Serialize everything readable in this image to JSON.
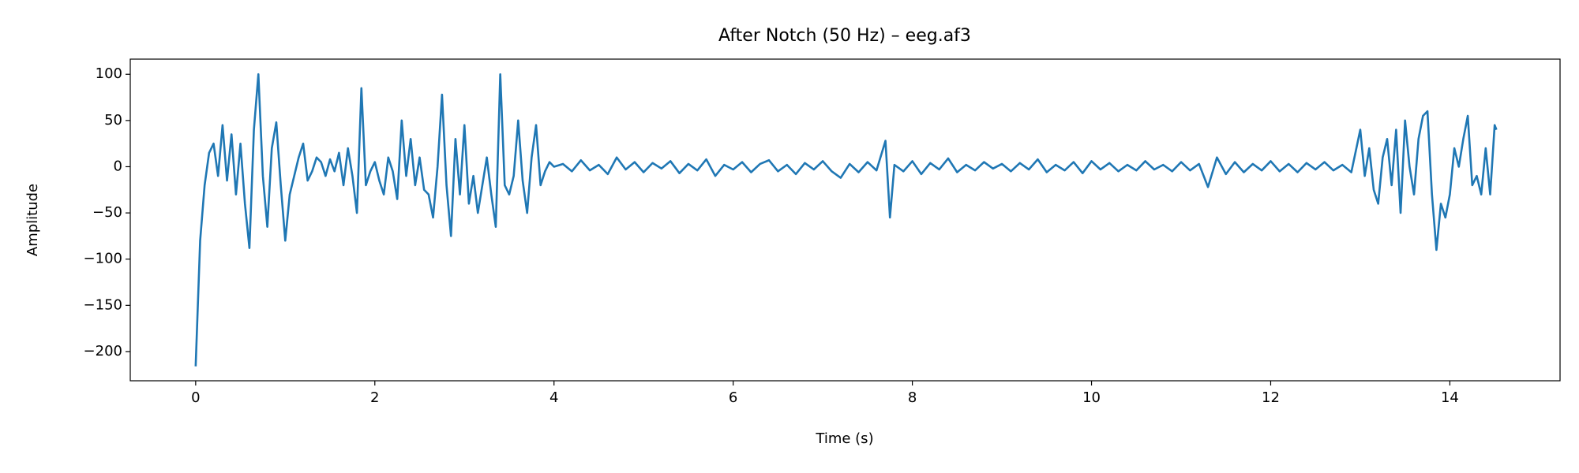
{
  "chart_data": {
    "type": "line",
    "title": "After Notch (50 Hz) – eeg.af3",
    "x_label": "Time (s)",
    "y_label": "Amplitude",
    "xlim": [
      -0.73,
      15.23
    ],
    "ylim": [
      -231.6,
      116.4
    ],
    "xticks": [
      0,
      2,
      4,
      6,
      8,
      10,
      12,
      14
    ],
    "yticks": [
      {
        "value": -200,
        "label": "−200"
      },
      {
        "value": -150,
        "label": "−150"
      },
      {
        "value": -100,
        "label": "−100"
      },
      {
        "value": -50,
        "label": "−50"
      },
      0,
      50,
      100
    ],
    "grid": false,
    "series": [
      {
        "color": "#1f77b4",
        "x": [
          0,
          0.05,
          0.1,
          0.15,
          0.2,
          0.25,
          0.3,
          0.35,
          0.4,
          0.45,
          0.5,
          0.55,
          0.6,
          0.65,
          0.7,
          0.75,
          0.8,
          0.85,
          0.9,
          0.95,
          1.0,
          1.05,
          1.1,
          1.15,
          1.2,
          1.25,
          1.3,
          1.35,
          1.4,
          1.45,
          1.5,
          1.55,
          1.6,
          1.65,
          1.7,
          1.75,
          1.8,
          1.85,
          1.9,
          1.95,
          2.0,
          2.05,
          2.1,
          2.15,
          2.2,
          2.25,
          2.3,
          2.35,
          2.4,
          2.45,
          2.5,
          2.55,
          2.6,
          2.65,
          2.7,
          2.75,
          2.8,
          2.85,
          2.9,
          2.95,
          3.0,
          3.05,
          3.1,
          3.15,
          3.2,
          3.25,
          3.3,
          3.35,
          3.4,
          3.45,
          3.5,
          3.55,
          3.6,
          3.65,
          3.7,
          3.75,
          3.8,
          3.85,
          3.9,
          3.95,
          4.0,
          4.1,
          4.2,
          4.3,
          4.4,
          4.5,
          4.6,
          4.7,
          4.8,
          4.9,
          5.0,
          5.1,
          5.2,
          5.3,
          5.4,
          5.5,
          5.6,
          5.7,
          5.8,
          5.9,
          6.0,
          6.1,
          6.2,
          6.3,
          6.4,
          6.5,
          6.6,
          6.7,
          6.8,
          6.9,
          7.0,
          7.1,
          7.2,
          7.3,
          7.4,
          7.5,
          7.6,
          7.7,
          7.75,
          7.8,
          7.9,
          8.0,
          8.1,
          8.2,
          8.3,
          8.4,
          8.5,
          8.6,
          8.7,
          8.8,
          8.9,
          9.0,
          9.1,
          9.2,
          9.3,
          9.4,
          9.5,
          9.6,
          9.7,
          9.8,
          9.9,
          10.0,
          10.1,
          10.2,
          10.3,
          10.4,
          10.5,
          10.6,
          10.7,
          10.8,
          10.9,
          11.0,
          11.1,
          11.2,
          11.3,
          11.4,
          11.5,
          11.6,
          11.7,
          11.8,
          11.9,
          12.0,
          12.1,
          12.2,
          12.3,
          12.4,
          12.5,
          12.6,
          12.7,
          12.8,
          12.9,
          13.0,
          13.05,
          13.1,
          13.15,
          13.2,
          13.25,
          13.3,
          13.35,
          13.4,
          13.45,
          13.5,
          13.55,
          13.6,
          13.65,
          13.7,
          13.75,
          13.8,
          13.85,
          13.9,
          13.95,
          14.0,
          14.05,
          14.1,
          14.15,
          14.2,
          14.25,
          14.3,
          14.35,
          14.4,
          14.45,
          14.5,
          14.52
        ],
        "values": [
          -216,
          -80,
          -20,
          15,
          25,
          -10,
          45,
          -15,
          35,
          -30,
          25,
          -40,
          -88,
          40,
          100,
          -10,
          -65,
          20,
          48,
          -20,
          -80,
          -30,
          -10,
          10,
          25,
          -15,
          -5,
          10,
          5,
          -10,
          8,
          -5,
          15,
          -20,
          20,
          -10,
          -50,
          85,
          -20,
          -5,
          5,
          -15,
          -30,
          10,
          -5,
          -35,
          50,
          -10,
          30,
          -20,
          10,
          -25,
          -30,
          -55,
          0,
          78,
          -20,
          -75,
          30,
          -30,
          45,
          -40,
          -10,
          -50,
          -20,
          10,
          -30,
          -65,
          100,
          -20,
          -30,
          -10,
          50,
          -15,
          -50,
          10,
          45,
          -20,
          -5,
          5,
          0,
          3,
          -5,
          7,
          -4,
          2,
          -8,
          10,
          -3,
          5,
          -6,
          4,
          -2,
          6,
          -7,
          3,
          -4,
          8,
          -10,
          2,
          -3,
          5,
          -6,
          3,
          7,
          -5,
          2,
          -8,
          4,
          -3,
          6,
          -5,
          -12,
          3,
          -6,
          5,
          -4,
          28,
          -55,
          2,
          -5,
          6,
          -8,
          4,
          -3,
          9,
          -6,
          2,
          -4,
          5,
          -2,
          3,
          -5,
          4,
          -3,
          8,
          -6,
          2,
          -4,
          5,
          -7,
          6,
          -3,
          4,
          -5,
          2,
          -4,
          6,
          -3,
          2,
          -5,
          5,
          -4,
          3,
          -22,
          10,
          -8,
          5,
          -6,
          3,
          -4,
          6,
          -5,
          3,
          -6,
          4,
          -3,
          5,
          -4,
          2,
          -6,
          40,
          -10,
          20,
          -25,
          -40,
          10,
          30,
          -20,
          40,
          -50,
          50,
          0,
          -30,
          30,
          55,
          60,
          -30,
          -90,
          -40,
          -55,
          -30,
          20,
          0,
          30,
          55,
          -20,
          -10,
          -30,
          20,
          -30,
          45,
          40
        ]
      }
    ]
  }
}
